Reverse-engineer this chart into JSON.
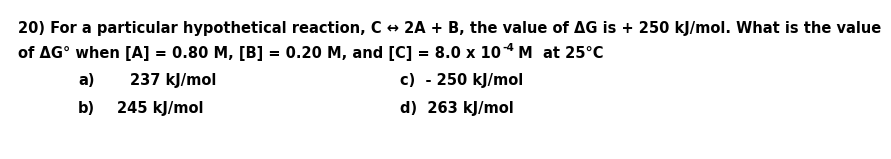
{
  "line1": "20) For a particular hypothetical reaction, C ↔ 2A + B, the value of ΔG is + 250 kJ/mol. What is the value",
  "line2a": "of ΔG° when [A] = 0.80 M, [B] = 0.20 M, and [C] = 8.0 x 10",
  "line2_sup": "-4",
  "line2b": " M  at 25°C",
  "ans_a_label": "a)",
  "ans_a_text": "237 kJ/mol",
  "ans_b_label": "b)",
  "ans_b_text": "245 kJ/mol",
  "ans_c_text": "c)  - 250 kJ/mol",
  "ans_d_text": "d)  263 kJ/mol",
  "bg_color": "#ffffff",
  "text_color": "#000000",
  "fontsize": 10.5
}
